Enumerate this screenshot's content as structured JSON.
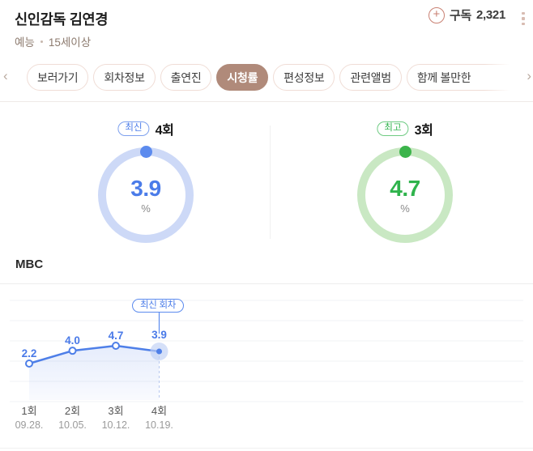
{
  "header": {
    "title": "신인감독 김연경",
    "genre": "예능",
    "rating": "15세이상",
    "subscribe_label": "구독",
    "subscribe_count": "2,321"
  },
  "tabs": {
    "items": [
      {
        "label": "보러가기",
        "selected": false
      },
      {
        "label": "회차정보",
        "selected": false
      },
      {
        "label": "출연진",
        "selected": false
      },
      {
        "label": "시청률",
        "selected": true
      },
      {
        "label": "편성정보",
        "selected": false
      },
      {
        "label": "관련앨범",
        "selected": false
      },
      {
        "label": "함께 볼만한",
        "selected": false
      }
    ],
    "scroll_left": "‹",
    "scroll_right": "›"
  },
  "summary": {
    "latest": {
      "badge": "최신",
      "episode": "4회",
      "value": "3.9",
      "unit": "%",
      "accent": "#4b7ce9",
      "ring": "#cdd9f7",
      "dot": "#5c8bee"
    },
    "best": {
      "badge": "최고",
      "episode": "3회",
      "value": "4.7",
      "unit": "%",
      "accent": "#2fb34c",
      "ring": "#c9e8c3",
      "dot": "#3cb44b"
    }
  },
  "chart_data": {
    "type": "line",
    "title": "MBC",
    "categories": [
      "1회",
      "2회",
      "3회",
      "4회"
    ],
    "x_dates": [
      "09.28.",
      "10.05.",
      "10.12.",
      "10.19."
    ],
    "values": [
      2.2,
      4.0,
      4.7,
      3.9
    ],
    "unit": "%",
    "annotation": {
      "label": "최신 회차",
      "point_index": 3
    },
    "grid": true,
    "legend": "none",
    "line_color": "#4e7fe8",
    "area_color": "#6a90eb",
    "label_color": "#4a7ae8",
    "axis_label_color": "#555555",
    "axis_date_color": "#9a9a9a"
  }
}
